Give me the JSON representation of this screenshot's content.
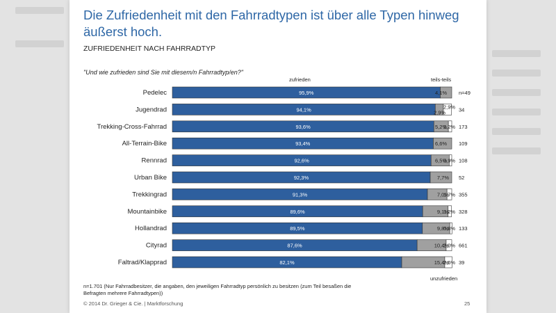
{
  "title": "Die Zufriedenheit mit den Fahrradtypen ist über alle Typen hinweg äußerst hoch.",
  "subtitle": "ZUFRIEDENHEIT  NACH FAHRRADTYP",
  "question": "\"Und wie zufrieden sind Sie mit diesem/n Fahrradtyp/en?\"",
  "legend": {
    "zufrieden": "zufrieden",
    "teils": "teils-teils",
    "unzufrieden": "unzufrieden"
  },
  "footnote": "n=1.701 (Nur Fahrradbesitzer,  die angaben, den jeweiligen Fahrradtyp persönlich zu besitzen (zum Teil besaßen die Befragten mehrere Fahrradtypen))",
  "copyright": "© 2014  Dr. Grieger  & Cie.  | Marktforschung",
  "page_number": "25",
  "colors": {
    "zufrieden": "#2e5f9e",
    "teils": "#a0a0a0",
    "unzufrieden": "#ffffff",
    "outline": "#333333"
  },
  "chart_data": {
    "type": "bar",
    "orientation": "horizontal",
    "stacked": true,
    "unit": "%",
    "xlim": [
      0,
      100
    ],
    "categories": [
      "Pedelec",
      "Jugendrad",
      "Trekking-Cross-Fahrrad",
      "All-Terrain-Bike",
      "Rennrad",
      "Urban Bike",
      "Trekkingrad",
      "Mountainbike",
      "Hollandrad",
      "Cityrad",
      "Faltrad/Klapprad"
    ],
    "series": [
      {
        "name": "zufrieden",
        "values": [
          95.9,
          94.1,
          93.6,
          93.4,
          92.6,
          92.3,
          91.3,
          89.6,
          89.5,
          87.6,
          82.1
        ],
        "labels": [
          "95,9%",
          "94,1%",
          "93,6%",
          "93,4%",
          "92,6%",
          "92,3%",
          "91,3%",
          "89,6%",
          "89,5%",
          "87,6%",
          "82,1%"
        ]
      },
      {
        "name": "teils-teils",
        "values": [
          4.1,
          2.9,
          5.2,
          6.6,
          6.5,
          7.7,
          7.0,
          9.1,
          9.8,
          10.4,
          15.4
        ],
        "labels": [
          "4,1%",
          "2,9%",
          "5,2%",
          "6,6%",
          "6,5%",
          "7,7%",
          "7,0%",
          "9,1%",
          "9,8%",
          "10,4%",
          "15,4%"
        ]
      },
      {
        "name": "unzufrieden",
        "values": [
          0,
          2.9,
          1.2,
          0,
          0.9,
          0,
          1.7,
          1.2,
          0.8,
          2.0,
          2.6
        ],
        "labels": [
          "",
          "2,9%",
          "1,2%",
          "",
          "0,9%",
          "",
          "1,7%",
          "1,2%",
          "0,8%",
          "2,0%",
          "2,6%"
        ]
      }
    ],
    "n_values": [
      "n=49",
      "34",
      "173",
      "109",
      "108",
      "52",
      "355",
      "328",
      "133",
      "661",
      "39"
    ]
  }
}
